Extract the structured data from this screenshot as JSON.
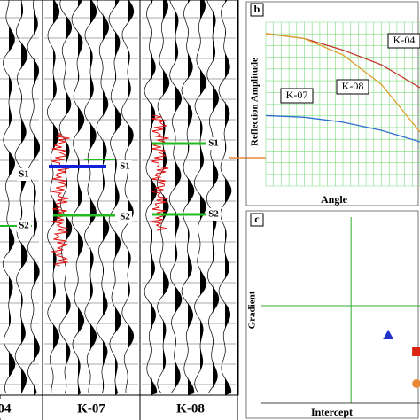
{
  "panel_a": {
    "wells": [
      {
        "label": "04",
        "markers": [
          "S1",
          "S2"
        ]
      },
      {
        "label": "K-07",
        "markers": [
          "S1",
          "S2"
        ]
      },
      {
        "label": "K-08",
        "markers": [
          "S1",
          "S2"
        ]
      }
    ]
  },
  "chart_data": [
    {
      "type": "line",
      "panel": "b",
      "x_label": "Angle",
      "y_label": "Reflection Amplitude",
      "x": [
        0,
        10,
        20,
        30,
        40
      ],
      "xlim": [
        0,
        40
      ],
      "ylim": [
        0,
        1
      ],
      "grid": true,
      "series": [
        {
          "name": "K-04",
          "color": "#c0392b",
          "values": [
            0.93,
            0.9,
            0.83,
            0.74,
            0.6
          ]
        },
        {
          "name": "K-08",
          "color": "#e0a030",
          "values": [
            0.93,
            0.9,
            0.8,
            0.62,
            0.33
          ]
        },
        {
          "name": "K-07",
          "color": "#2f6fd0",
          "values": [
            0.43,
            0.42,
            0.39,
            0.34,
            0.27
          ]
        }
      ]
    },
    {
      "type": "scatter",
      "panel": "c",
      "x_label": "Intercept",
      "y_label": "Gradient",
      "xlim": [
        -1.3,
        1
      ],
      "ylim": [
        -1.1,
        1
      ],
      "series": [
        {
          "color": "#2233cc",
          "marker": "triangle",
          "x": [
            0.54
          ],
          "values": [
            -0.33
          ]
        },
        {
          "color": "#dd2211",
          "marker": "square",
          "x": [
            0.95
          ],
          "values": [
            -0.52
          ]
        },
        {
          "color": "#e8893a",
          "marker": "circle",
          "x": [
            0.95
          ],
          "values": [
            -0.88
          ]
        }
      ]
    }
  ]
}
